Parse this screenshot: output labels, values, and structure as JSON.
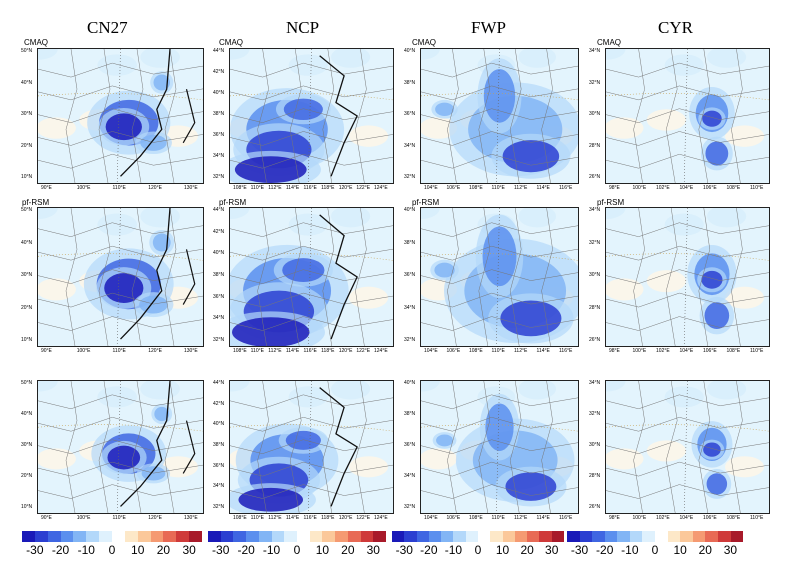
{
  "columns": [
    "CN27",
    "NCP",
    "FWP",
    "CYR"
  ],
  "row_labels": [
    "CMAQ",
    "pf-RSM",
    ""
  ],
  "colorbar": {
    "labels": [
      "-30",
      "-20",
      "-10",
      "0",
      "10",
      "20",
      "30"
    ],
    "colors": [
      "#1a1ab8",
      "#2b3fd1",
      "#3f66e2",
      "#5b8fee",
      "#82b5f5",
      "#b3d8fa",
      "#dff1fd",
      "#ffffff",
      "#fde8c8",
      "#fbc89a",
      "#f59a72",
      "#e86a55",
      "#cf3a3a",
      "#a81a2a"
    ]
  },
  "maps": [
    {
      "lats": [
        "50°N",
        "40°N",
        "30°N",
        "20°N",
        "10°N"
      ],
      "lons": [
        "90°E",
        "100°E",
        "110°E",
        "120°E",
        "130°E"
      ]
    },
    {
      "lats": [
        "44°N",
        "42°N",
        "40°N",
        "38°N",
        "36°N",
        "34°N",
        "32°N"
      ],
      "lons": [
        "108°E",
        "110°E",
        "112°E",
        "114°E",
        "116°E",
        "118°E",
        "120°E",
        "122°E",
        "124°E"
      ]
    },
    {
      "lats": [
        "40°N",
        "38°N",
        "36°N",
        "34°N",
        "32°N"
      ],
      "lons": [
        "104°E",
        "106°E",
        "108°E",
        "110°E",
        "112°E",
        "114°E",
        "116°E"
      ]
    },
    {
      "lats": [
        "34°N",
        "32°N",
        "30°N",
        "28°N",
        "26°N"
      ],
      "lons": [
        "98°E",
        "100°E",
        "102°E",
        "104°E",
        "106°E",
        "108°E",
        "110°E"
      ]
    }
  ]
}
